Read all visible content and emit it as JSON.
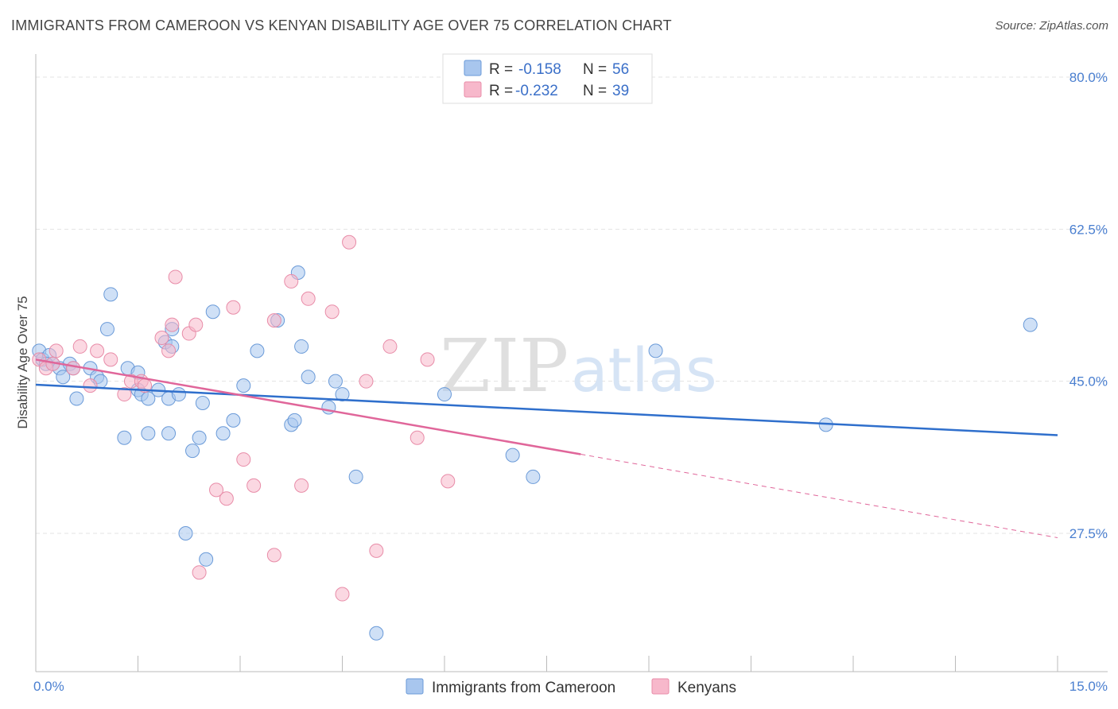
{
  "header": {
    "title": "IMMIGRANTS FROM CAMEROON VS KENYAN DISABILITY AGE OVER 75 CORRELATION CHART",
    "source": "Source: ZipAtlas.com"
  },
  "watermark": {
    "zip": "ZIP",
    "atlas": "atlas"
  },
  "legend": {
    "rows": [
      {
        "r_label": "R =",
        "r_value": "-0.158",
        "n_label": "N =",
        "n_value": "56",
        "color": "#a8c6ee"
      },
      {
        "r_label": "R =",
        "r_value": "-0.232",
        "n_label": "N =",
        "n_value": "39",
        "color": "#f7b8cb"
      }
    ]
  },
  "bottom_legend": [
    {
      "label": "Immigrants from Cameroon",
      "color": "#a8c6ee"
    },
    {
      "label": "Kenyans",
      "color": "#f7b8cb"
    }
  ],
  "chart_data": {
    "type": "scatter",
    "title": "IMMIGRANTS FROM CAMEROON VS KENYAN DISABILITY AGE OVER 75 CORRELATION CHART",
    "xlabel": "",
    "ylabel": "Disability Age Over 75",
    "xlim": [
      0,
      15
    ],
    "ylim": [
      12,
      83
    ],
    "x_tick_labels": [
      "0.0%",
      "15.0%"
    ],
    "y_ticks": [
      27.5,
      45.0,
      62.5,
      80.0
    ],
    "y_tick_labels": [
      "27.5%",
      "45.0%",
      "62.5%",
      "80.0%"
    ],
    "grid": true,
    "legend_position": "top-center",
    "series": [
      {
        "name": "Immigrants from Cameroon",
        "color": "#a8c6ee",
        "stroke": "#6a9ad8",
        "points": [
          [
            0.05,
            48.5
          ],
          [
            0.1,
            47.5
          ],
          [
            0.2,
            48.0
          ],
          [
            0.25,
            47.0
          ],
          [
            0.35,
            46.5
          ],
          [
            0.4,
            45.5
          ],
          [
            0.5,
            47.0
          ],
          [
            0.55,
            46.5
          ],
          [
            0.6,
            43.0
          ],
          [
            0.8,
            46.5
          ],
          [
            0.9,
            45.5
          ],
          [
            0.95,
            45.0
          ],
          [
            1.05,
            51.0
          ],
          [
            1.1,
            55.0
          ],
          [
            1.3,
            38.5
          ],
          [
            1.35,
            46.5
          ],
          [
            1.5,
            46.0
          ],
          [
            1.5,
            44.0
          ],
          [
            1.55,
            43.5
          ],
          [
            1.65,
            43.0
          ],
          [
            1.65,
            39.0
          ],
          [
            1.8,
            44.0
          ],
          [
            1.9,
            49.5
          ],
          [
            1.95,
            43.0
          ],
          [
            1.95,
            39.0
          ],
          [
            2.0,
            49.0
          ],
          [
            2.0,
            51.0
          ],
          [
            2.1,
            43.5
          ],
          [
            2.2,
            27.5
          ],
          [
            2.3,
            37.0
          ],
          [
            2.4,
            38.5
          ],
          [
            2.45,
            42.5
          ],
          [
            2.5,
            24.5
          ],
          [
            2.6,
            53.0
          ],
          [
            2.75,
            39.0
          ],
          [
            2.9,
            40.5
          ],
          [
            3.05,
            44.5
          ],
          [
            3.25,
            48.5
          ],
          [
            3.55,
            52.0
          ],
          [
            3.75,
            40.0
          ],
          [
            3.8,
            40.5
          ],
          [
            3.85,
            57.5
          ],
          [
            3.9,
            49.0
          ],
          [
            4.0,
            45.5
          ],
          [
            4.3,
            42.0
          ],
          [
            4.4,
            45.0
          ],
          [
            4.5,
            43.5
          ],
          [
            4.7,
            34.0
          ],
          [
            5.0,
            16.0
          ],
          [
            6.0,
            43.5
          ],
          [
            7.0,
            36.5
          ],
          [
            7.3,
            34.0
          ],
          [
            9.1,
            48.5
          ],
          [
            11.6,
            40.0
          ],
          [
            14.6,
            51.5
          ],
          [
            0.15,
            47.0
          ]
        ]
      },
      {
        "name": "Kenyans",
        "color": "#f7b8cb",
        "stroke": "#e88ca8",
        "points": [
          [
            0.05,
            47.5
          ],
          [
            0.15,
            46.5
          ],
          [
            0.25,
            47.0
          ],
          [
            0.3,
            48.5
          ],
          [
            0.55,
            46.5
          ],
          [
            0.65,
            49.0
          ],
          [
            0.8,
            44.5
          ],
          [
            0.9,
            48.5
          ],
          [
            1.1,
            47.5
          ],
          [
            1.3,
            43.5
          ],
          [
            1.4,
            45.0
          ],
          [
            1.55,
            45.0
          ],
          [
            1.6,
            44.5
          ],
          [
            1.85,
            50.0
          ],
          [
            1.95,
            48.5
          ],
          [
            2.0,
            51.5
          ],
          [
            2.05,
            57.0
          ],
          [
            2.25,
            50.5
          ],
          [
            2.35,
            51.5
          ],
          [
            2.4,
            23.0
          ],
          [
            2.65,
            32.5
          ],
          [
            2.8,
            31.5
          ],
          [
            2.9,
            53.5
          ],
          [
            3.05,
            36.0
          ],
          [
            3.2,
            33.0
          ],
          [
            3.5,
            52.0
          ],
          [
            3.5,
            25.0
          ],
          [
            3.75,
            56.5
          ],
          [
            3.9,
            33.0
          ],
          [
            4.0,
            54.5
          ],
          [
            4.35,
            53.0
          ],
          [
            4.5,
            20.5
          ],
          [
            4.6,
            61.0
          ],
          [
            4.85,
            45.0
          ],
          [
            5.0,
            25.5
          ],
          [
            5.2,
            49.0
          ],
          [
            5.6,
            38.5
          ],
          [
            5.75,
            47.5
          ],
          [
            6.05,
            33.5
          ]
        ]
      }
    ],
    "trend_lines": [
      {
        "series": "Immigrants from Cameroon",
        "color": "#2f6fcc",
        "from": [
          0,
          44.6
        ],
        "to": [
          15,
          38.8
        ],
        "style": "solid"
      },
      {
        "series": "Kenyans",
        "color": "#e0669a",
        "from": [
          0,
          47.5
        ],
        "to": [
          8.0,
          36.6
        ],
        "style": "solid"
      },
      {
        "series": "Kenyans",
        "color": "#e0669a",
        "from": [
          8.0,
          36.6
        ],
        "to": [
          15,
          27.0
        ],
        "style": "dashed"
      }
    ]
  }
}
